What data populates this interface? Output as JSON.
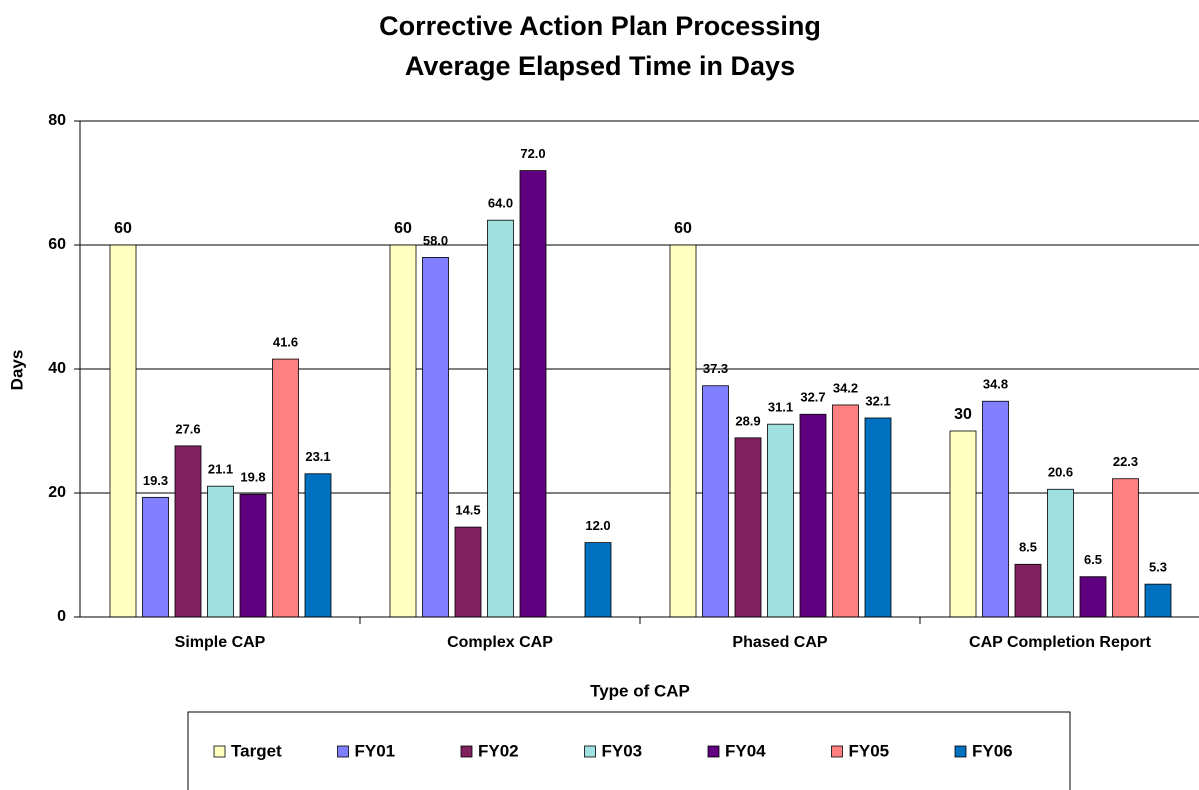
{
  "chart_data": {
    "type": "bar",
    "title": "Corrective Action Plan Processing",
    "subtitle": "Average Elapsed Time in Days",
    "x_label": "Type of CAP",
    "y_label": "Days",
    "categories": [
      "Simple CAP",
      "Complex  CAP",
      "Phased CAP",
      "CAP Completion Report"
    ],
    "series": [
      {
        "name": "Target",
        "color": "#ffffc0",
        "values": [
          60,
          60,
          60,
          30
        ],
        "value_labels": [
          "60",
          "60",
          "60",
          "30"
        ]
      },
      {
        "name": "FY01",
        "color": "#8080ff",
        "values": [
          19.3,
          58.0,
          37.3,
          34.8
        ],
        "value_labels": [
          "19.3",
          "58.0",
          "37.3",
          "34.8"
        ]
      },
      {
        "name": "FY02",
        "color": "#80205f",
        "values": [
          27.6,
          14.5,
          28.9,
          8.5
        ],
        "value_labels": [
          "27.6",
          "14.5",
          "28.9",
          "8.5"
        ]
      },
      {
        "name": "FY03",
        "color": "#a0e0e0",
        "values": [
          21.1,
          64.0,
          31.1,
          20.6
        ],
        "value_labels": [
          "21.1",
          "64.0",
          "31.1",
          "20.6"
        ]
      },
      {
        "name": "FY04",
        "color": "#600080",
        "values": [
          19.8,
          72.0,
          32.7,
          6.5
        ],
        "value_labels": [
          "19.8",
          "72.0",
          "32.7",
          "6.5"
        ]
      },
      {
        "name": "FY05",
        "color": "#ff8080",
        "values": [
          41.6,
          null,
          34.2,
          22.3
        ],
        "value_labels": [
          "41.6",
          null,
          "34.2",
          "22.3"
        ]
      },
      {
        "name": "FY06",
        "color": "#0070c0",
        "values": [
          23.1,
          12.0,
          32.1,
          5.3
        ],
        "value_labels": [
          "23.1",
          "12.0",
          "32.1",
          "5.3"
        ]
      }
    ],
    "ylim": [
      0,
      80
    ],
    "yticks": [
      0,
      20,
      40,
      60,
      80
    ],
    "grid": true,
    "legend": "bottom"
  }
}
